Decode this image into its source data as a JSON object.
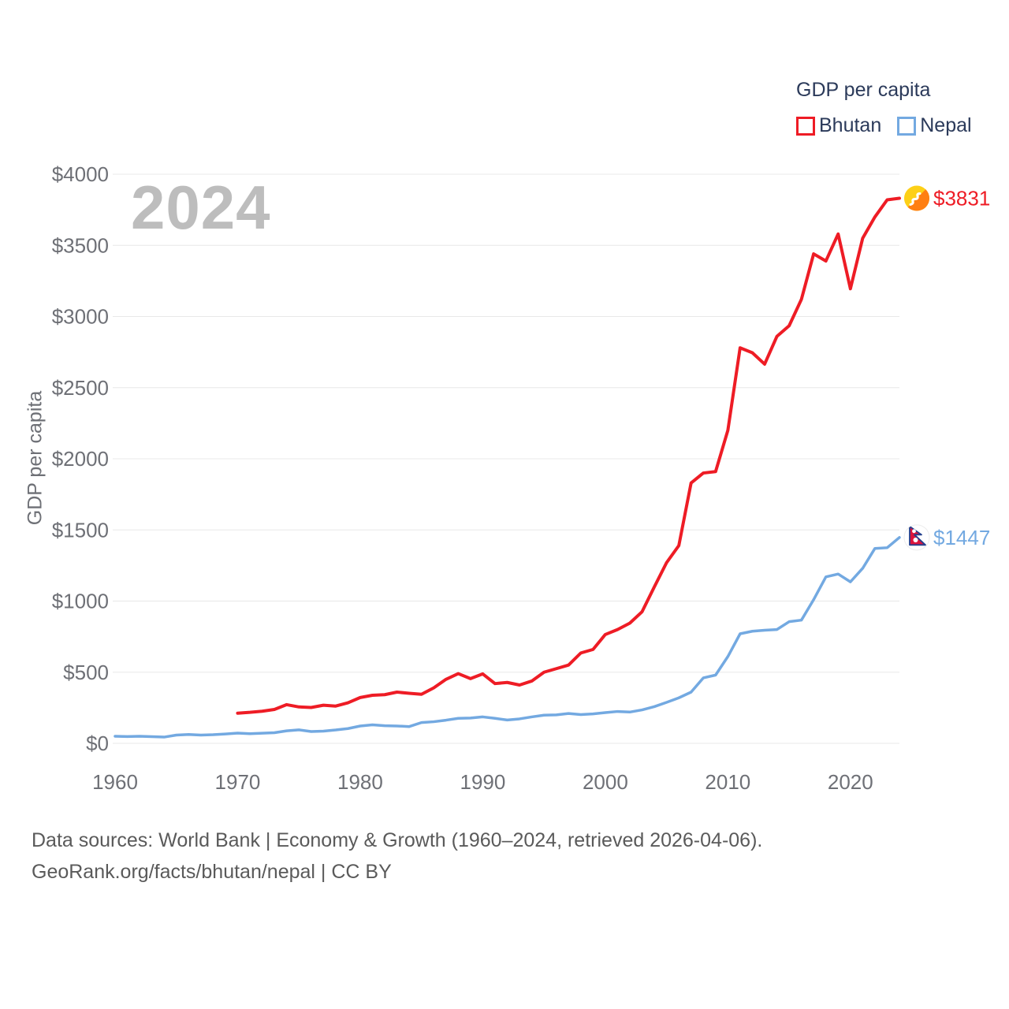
{
  "legend": {
    "title": "GDP per capita",
    "items": [
      {
        "label": "Bhutan",
        "color": "#ee1c25"
      },
      {
        "label": "Nepal",
        "color": "#73a9e1"
      }
    ]
  },
  "watermark": "2024",
  "chart_data": {
    "type": "line",
    "title": "GDP per capita",
    "xlabel": "",
    "ylabel": "GDP per capita",
    "xlim": [
      1960,
      2024
    ],
    "ylim": [
      0,
      4000
    ],
    "grid": "horizontal",
    "legend_position": "top-right",
    "x_ticks": [
      {
        "label": "1960",
        "value": 1960
      },
      {
        "label": "1970",
        "value": 1970
      },
      {
        "label": "1980",
        "value": 1980
      },
      {
        "label": "1990",
        "value": 1990
      },
      {
        "label": "2000",
        "value": 2000
      },
      {
        "label": "2010",
        "value": 2010
      },
      {
        "label": "2020",
        "value": 2020
      }
    ],
    "y_ticks": [
      {
        "label": "$0",
        "value": 0
      },
      {
        "label": "$500",
        "value": 500
      },
      {
        "label": "$1000",
        "value": 1000
      },
      {
        "label": "$1500",
        "value": 1500
      },
      {
        "label": "$2000",
        "value": 2000
      },
      {
        "label": "$2500",
        "value": 2500
      },
      {
        "label": "$3000",
        "value": 3000
      },
      {
        "label": "$3500",
        "value": 3500
      },
      {
        "label": "$4000",
        "value": 4000
      }
    ],
    "series": [
      {
        "name": "Bhutan",
        "color": "#ee1c25",
        "stroke_width": 4,
        "start_year": 1970,
        "end_year": 2024,
        "end_value": 3831,
        "end_label": "$3831",
        "values": [
          212,
          218,
          226,
          238,
          272,
          256,
          252,
          268,
          262,
          285,
          322,
          338,
          342,
          360,
          352,
          345,
          390,
          450,
          490,
          455,
          488,
          420,
          428,
          410,
          438,
          500,
          525,
          550,
          635,
          660,
          765,
          800,
          845,
          925,
          1100,
          1270,
          1390,
          1830,
          1900,
          1910,
          2200,
          2780,
          2745,
          2665,
          2860,
          2935,
          3120,
          3440,
          3390,
          3580,
          3195,
          3550,
          3700,
          3820,
          3831
        ]
      },
      {
        "name": "Nepal",
        "color": "#73a9e1",
        "stroke_width": 3.5,
        "start_year": 1960,
        "end_year": 2024,
        "end_value": 1447,
        "end_label": "$1447",
        "values": [
          50,
          48,
          50,
          47,
          44,
          58,
          62,
          58,
          61,
          66,
          72,
          68,
          71,
          75,
          88,
          95,
          83,
          86,
          94,
          104,
          122,
          130,
          124,
          122,
          118,
          146,
          152,
          163,
          176,
          178,
          186,
          176,
          164,
          172,
          186,
          198,
          200,
          210,
          202,
          207,
          216,
          224,
          220,
          235,
          258,
          288,
          320,
          360,
          460,
          480,
          610,
          770,
          788,
          795,
          800,
          855,
          866,
          1010,
          1170,
          1190,
          1135,
          1230,
          1370,
          1375,
          1447
        ]
      }
    ]
  },
  "icons": {
    "bhutan_flag": {
      "name": "bhutan-flag-icon",
      "colors": [
        "#fdd017",
        "#ff7f12",
        "#ffffff"
      ]
    },
    "nepal_flag": {
      "name": "nepal-flag-icon",
      "colors": [
        "#dc143c",
        "#24408e",
        "#ffffff"
      ]
    }
  },
  "colors": {
    "grid_line": "#e8e8e8",
    "tick_text": "#6e7076",
    "legend_text": "#2b3a5a",
    "watermark": "#bdbdbd",
    "footer_text": "#5a5a5a",
    "background": "#ffffff"
  },
  "footer": {
    "line1": "Data sources: World Bank | Economy & Growth (1960–2024, retrieved 2026-04-06).",
    "line2": "GeoRank.org/facts/bhutan/nepal | CC BY"
  }
}
